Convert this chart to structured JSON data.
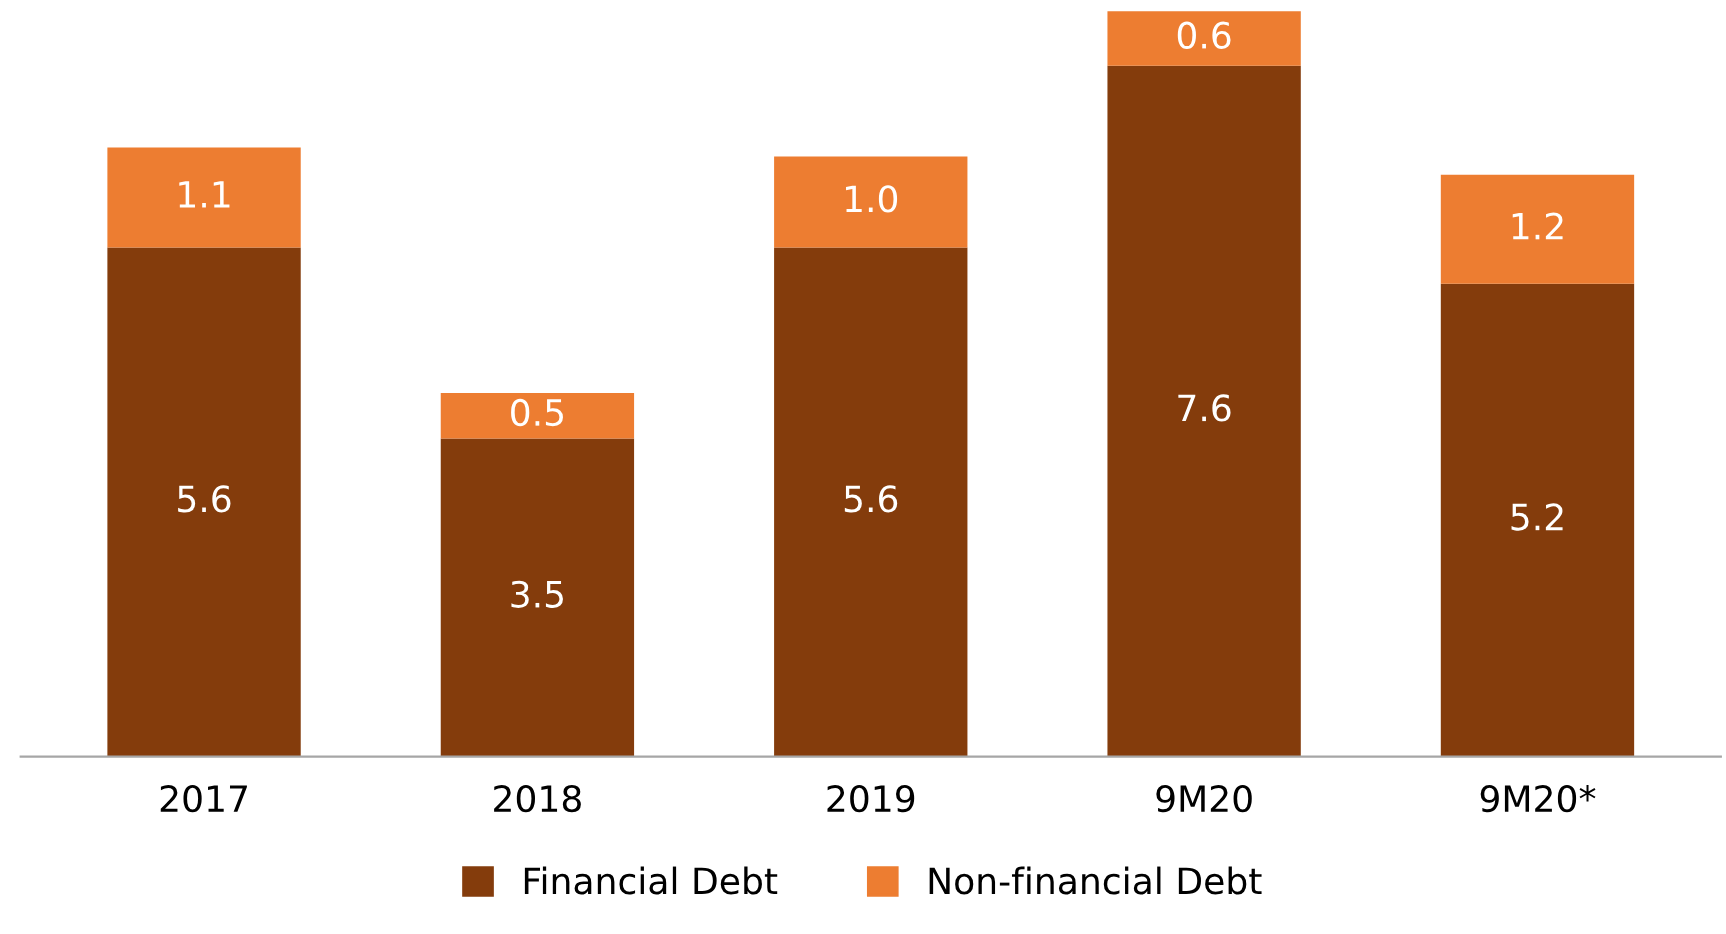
{
  "chart_data": {
    "type": "bar",
    "stacked": true,
    "legend": "bottom",
    "grid": false,
    "categories": [
      "2017",
      "2018",
      "2019",
      "9M20",
      "9M20*"
    ],
    "series": [
      {
        "name": "Financial Debt",
        "color": "#843c0c",
        "values": [
          5.6,
          3.5,
          5.6,
          7.6,
          5.2
        ],
        "value_labels": [
          "5.6",
          "3.5",
          "5.6",
          "7.6",
          "5.2"
        ]
      },
      {
        "name": "Non-financial Debt",
        "color": "#ed7d31",
        "values": [
          1.1,
          0.5,
          1.0,
          0.6,
          1.2
        ],
        "value_labels": [
          "1.1",
          "0.5",
          "1.0",
          "0.6",
          "1.2"
        ]
      }
    ]
  }
}
